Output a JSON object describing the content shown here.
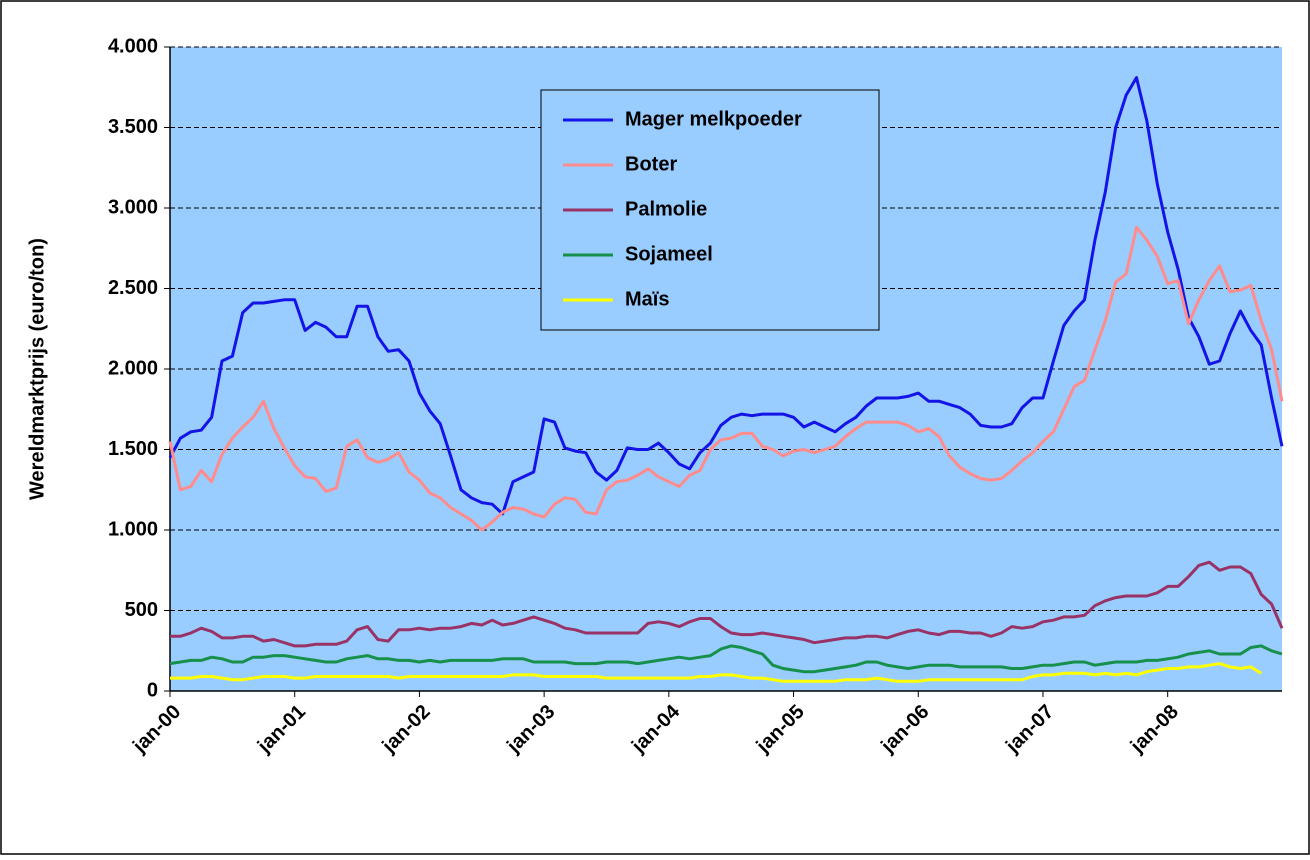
{
  "chart_data": {
    "type": "line",
    "y_label": "Wereldmarktprijs (euro/ton)",
    "categories": [
      "jan-00",
      null,
      null,
      null,
      null,
      null,
      null,
      null,
      null,
      null,
      null,
      null,
      "jan-01",
      null,
      null,
      null,
      null,
      null,
      null,
      null,
      null,
      null,
      null,
      null,
      "jan-02",
      null,
      null,
      null,
      null,
      null,
      null,
      null,
      null,
      null,
      null,
      null,
      "jan-03",
      null,
      null,
      null,
      null,
      null,
      null,
      null,
      null,
      null,
      null,
      null,
      "jan-04",
      null,
      null,
      null,
      null,
      null,
      null,
      null,
      null,
      null,
      null,
      null,
      "jan-05",
      null,
      null,
      null,
      null,
      null,
      null,
      null,
      null,
      null,
      null,
      null,
      "jan-06",
      null,
      null,
      null,
      null,
      null,
      null,
      null,
      null,
      null,
      null,
      null,
      "jan-07",
      null,
      null,
      null,
      null,
      null,
      null,
      null,
      null,
      null,
      null,
      null,
      "jan-08",
      null,
      null,
      null,
      null,
      null,
      null,
      null,
      null,
      null,
      null,
      null
    ],
    "series": [
      {
        "name": "Mager melkpoeder",
        "color": "#1414e6",
        "values": [
          1450,
          1570,
          1610,
          1620,
          1700,
          2050,
          2080,
          2350,
          2410,
          2410,
          2420,
          2430,
          2430,
          2240,
          2290,
          2260,
          2200,
          2200,
          2390,
          2390,
          2200,
          2110,
          2120,
          2050,
          1850,
          1740,
          1660,
          1460,
          1250,
          1200,
          1170,
          1160,
          1100,
          1300,
          1330,
          1360,
          1690,
          1670,
          1510,
          1490,
          1480,
          1360,
          1310,
          1370,
          1510,
          1500,
          1500,
          1540,
          1480,
          1410,
          1380,
          1480,
          1540,
          1650,
          1700,
          1720,
          1710,
          1720,
          1720,
          1720,
          1700,
          1640,
          1670,
          1640,
          1610,
          1660,
          1700,
          1770,
          1820,
          1820,
          1820,
          1830,
          1850,
          1800,
          1800,
          1780,
          1760,
          1720,
          1650,
          1640,
          1640,
          1660,
          1760,
          1820,
          1820,
          2050,
          2270,
          2360,
          2430,
          2800,
          3100,
          3500,
          3700,
          3810,
          3540,
          3150,
          2850,
          2620,
          2320,
          2200,
          2030,
          2050,
          2220,
          2360,
          2240,
          2150,
          1820,
          1520
        ]
      },
      {
        "name": "Boter",
        "color": "#ff8c8c",
        "values": [
          1550,
          1250,
          1270,
          1370,
          1300,
          1470,
          1570,
          1640,
          1700,
          1800,
          1630,
          1510,
          1400,
          1330,
          1320,
          1240,
          1260,
          1520,
          1560,
          1450,
          1420,
          1440,
          1480,
          1360,
          1310,
          1230,
          1200,
          1140,
          1100,
          1060,
          1000,
          1050,
          1110,
          1140,
          1130,
          1100,
          1080,
          1160,
          1200,
          1190,
          1110,
          1100,
          1250,
          1300,
          1310,
          1340,
          1380,
          1330,
          1300,
          1270,
          1340,
          1370,
          1500,
          1560,
          1570,
          1600,
          1600,
          1520,
          1500,
          1460,
          1490,
          1500,
          1480,
          1500,
          1520,
          1580,
          1630,
          1670,
          1670,
          1670,
          1670,
          1650,
          1610,
          1630,
          1580,
          1460,
          1390,
          1350,
          1320,
          1310,
          1320,
          1370,
          1430,
          1480,
          1550,
          1610,
          1750,
          1890,
          1930,
          2120,
          2300,
          2540,
          2590,
          2880,
          2800,
          2700,
          2530,
          2550,
          2280,
          2430,
          2550,
          2640,
          2480,
          2490,
          2520,
          2300,
          2120,
          1800
        ]
      },
      {
        "name": "Palmolie",
        "color": "#993366",
        "values": [
          340,
          340,
          360,
          390,
          370,
          330,
          330,
          340,
          340,
          310,
          320,
          300,
          280,
          280,
          290,
          290,
          290,
          310,
          380,
          400,
          320,
          310,
          380,
          380,
          390,
          380,
          390,
          390,
          400,
          420,
          410,
          440,
          410,
          420,
          440,
          460,
          440,
          420,
          390,
          380,
          360,
          360,
          360,
          360,
          360,
          360,
          420,
          430,
          420,
          400,
          430,
          450,
          450,
          400,
          360,
          350,
          350,
          360,
          350,
          340,
          330,
          320,
          300,
          310,
          320,
          330,
          330,
          340,
          340,
          330,
          350,
          370,
          380,
          360,
          350,
          370,
          370,
          360,
          360,
          340,
          360,
          400,
          390,
          400,
          430,
          440,
          460,
          460,
          470,
          530,
          560,
          580,
          590,
          590,
          590,
          610,
          650,
          650,
          710,
          780,
          800,
          750,
          770,
          770,
          730,
          600,
          540,
          390
        ]
      },
      {
        "name": "Sojameel",
        "color": "#16904a",
        "values": [
          170,
          180,
          190,
          190,
          210,
          200,
          180,
          180,
          210,
          210,
          220,
          220,
          210,
          200,
          190,
          180,
          180,
          200,
          210,
          220,
          200,
          200,
          190,
          190,
          180,
          190,
          180,
          190,
          190,
          190,
          190,
          190,
          200,
          200,
          200,
          180,
          180,
          180,
          180,
          170,
          170,
          170,
          180,
          180,
          180,
          170,
          180,
          190,
          200,
          210,
          200,
          210,
          220,
          260,
          280,
          270,
          250,
          230,
          160,
          140,
          130,
          120,
          120,
          130,
          140,
          150,
          160,
          180,
          180,
          160,
          150,
          140,
          150,
          160,
          160,
          160,
          150,
          150,
          150,
          150,
          150,
          140,
          140,
          150,
          160,
          160,
          170,
          180,
          180,
          160,
          170,
          180,
          180,
          180,
          190,
          190,
          200,
          210,
          230,
          240,
          250,
          230,
          230,
          230,
          270,
          280,
          250,
          230
        ]
      },
      {
        "name": "Maïs",
        "color": "#ffff00",
        "values": [
          80,
          80,
          80,
          90,
          90,
          80,
          70,
          70,
          80,
          90,
          90,
          90,
          80,
          80,
          90,
          90,
          90,
          90,
          90,
          90,
          90,
          90,
          80,
          90,
          90,
          90,
          90,
          90,
          90,
          90,
          90,
          90,
          90,
          100,
          100,
          100,
          90,
          90,
          90,
          90,
          90,
          90,
          80,
          80,
          80,
          80,
          80,
          80,
          80,
          80,
          80,
          90,
          90,
          100,
          100,
          90,
          80,
          80,
          70,
          60,
          60,
          60,
          60,
          60,
          60,
          70,
          70,
          70,
          80,
          70,
          60,
          60,
          60,
          70,
          70,
          70,
          70,
          70,
          70,
          70,
          70,
          70,
          70,
          90,
          100,
          100,
          110,
          110,
          110,
          100,
          110,
          100,
          110,
          100,
          120,
          130,
          140,
          140,
          150,
          150,
          160,
          170,
          150,
          140,
          150,
          110,
          null,
          null
        ]
      }
    ],
    "ylim": [
      0,
      4000
    ],
    "yticks": [
      0,
      500,
      {
        "value": 1000,
        "label": "1.000"
      },
      {
        "value": 1500,
        "label": "1.500"
      },
      {
        "value": 2000,
        "label": "2.000"
      },
      {
        "value": 2500,
        "label": "2.500"
      },
      {
        "value": 3000,
        "label": "3.000"
      },
      {
        "value": 3500,
        "label": "3.500"
      },
      {
        "value": 4000,
        "label": "4.000"
      }
    ],
    "grid": true,
    "legend": "top-center",
    "background": "#99ccff"
  }
}
